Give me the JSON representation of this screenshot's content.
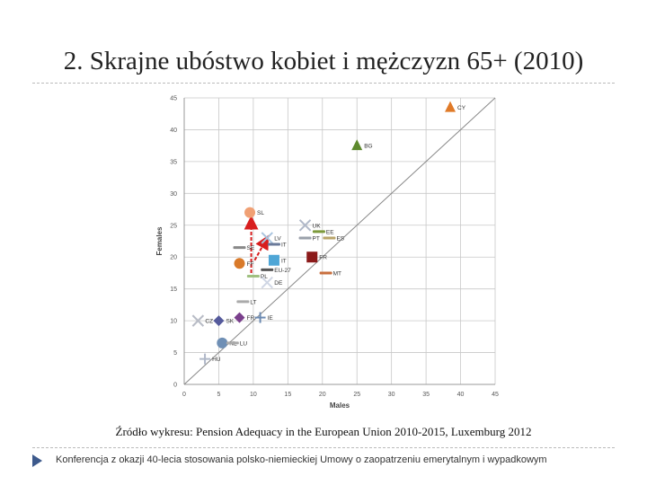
{
  "slide": {
    "title": "2. Skrajne ubóstwo kobiet i mężczyzn 65+ (2010)",
    "source": "Źródło wykresu: Pension Adequacy in the European Union 2010-2015, Luxemburg 2012",
    "footer": "Konferencja z okazji 40-lecia stosowania polsko-niemieckiej Umowy o zaopatrzeniu emerytalnym i wypadkowym"
  },
  "icons": {
    "footer_bullet": "triangle-bullet-icon"
  },
  "colors": {
    "diagonal": "#888888",
    "arrow": "#d81e1e",
    "grid": "#c8c8c8"
  },
  "chart_data": {
    "type": "scatter",
    "xlabel": "Males",
    "ylabel": "Females",
    "xlim": [
      0,
      45
    ],
    "ylim": [
      0,
      45
    ],
    "x_ticks": [
      "0",
      "5",
      "10",
      "15",
      "20",
      "25",
      "30",
      "35",
      "40",
      "45"
    ],
    "y_ticks": [
      "0",
      "5",
      "10",
      "15",
      "20",
      "25",
      "30",
      "35",
      "40",
      "45"
    ],
    "grid": true,
    "reference_line": "y = x",
    "points": [
      {
        "label": "CY",
        "x": 38.5,
        "y": 43.5,
        "shape": "triangle",
        "color": "#e07a28"
      },
      {
        "label": "BG",
        "x": 25,
        "y": 37.5,
        "shape": "triangle",
        "color": "#5e8a2e"
      },
      {
        "label": "SL",
        "x": 9.5,
        "y": 27,
        "shape": "circle",
        "color": "#f0a074"
      },
      {
        "label": "UK",
        "x": 17.5,
        "y": 25,
        "shape": "x",
        "color": "#b0b8c8"
      },
      {
        "label": "EE",
        "x": 19.5,
        "y": 24,
        "shape": "dash",
        "color": "#7d9a3c"
      },
      {
        "label": "ES",
        "x": 21,
        "y": 23,
        "shape": "dash",
        "color": "#b9a46a"
      },
      {
        "label": "PT",
        "x": 17.5,
        "y": 23,
        "shape": "dash",
        "color": "#9aa0aa"
      },
      {
        "label": "LV",
        "x": 12,
        "y": 23,
        "shape": "x",
        "color": "#a9c4de"
      },
      {
        "label": "IT",
        "x": 13,
        "y": 22,
        "shape": "dash",
        "color": "#6a7a9a"
      },
      {
        "label": "SE",
        "x": 8,
        "y": 21.5,
        "shape": "dash",
        "color": "#888888"
      },
      {
        "label": "FR",
        "x": 18.5,
        "y": 20,
        "shape": "square",
        "color": "#8b1a1a"
      },
      {
        "label": "IT",
        "x": 13,
        "y": 19.5,
        "shape": "square",
        "color": "#4fa6d6"
      },
      {
        "label": "EU-27",
        "x": 12,
        "y": 18,
        "shape": "dash",
        "color": "#555555"
      },
      {
        "label": "FF",
        "x": 8,
        "y": 19,
        "shape": "circle",
        "color": "#d97a2a"
      },
      {
        "label": "MT",
        "x": 20.5,
        "y": 17.5,
        "shape": "dash",
        "color": "#c86f3e"
      },
      {
        "label": "PL",
        "x": 10,
        "y": 17,
        "shape": "dash",
        "color": "#a0c080"
      },
      {
        "label": "DE",
        "x": 12,
        "y": 16,
        "shape": "x",
        "color": "#cfd6e4"
      },
      {
        "label": "LT",
        "x": 8.5,
        "y": 13,
        "shape": "dash",
        "color": "#aaaaaa"
      },
      {
        "label": "FR",
        "x": 8,
        "y": 10.5,
        "shape": "diamond",
        "color": "#7a3f8c"
      },
      {
        "label": "IE",
        "x": 11,
        "y": 10.5,
        "shape": "plus",
        "color": "#6c8ab2"
      },
      {
        "label": "CZ",
        "x": 2,
        "y": 10,
        "shape": "x",
        "color": "#b8bcc6"
      },
      {
        "label": "SK",
        "x": 5,
        "y": 10,
        "shape": "diamond",
        "color": "#555a9c"
      },
      {
        "label": "NL",
        "x": 5.5,
        "y": 6.5,
        "shape": "circle",
        "color": "#6f8fb5"
      },
      {
        "label": "LU",
        "x": 7,
        "y": 6.5,
        "shape": "dash",
        "color": "#aaaaaa"
      },
      {
        "label": "HU",
        "x": 3,
        "y": 4,
        "shape": "plus",
        "color": "#b0b8c8"
      }
    ],
    "annotations": [
      {
        "type": "arrow",
        "from": [
          9.7,
          17.5
        ],
        "to": [
          9.7,
          26
        ]
      },
      {
        "type": "arrow",
        "from": [
          10.2,
          19.5
        ],
        "to": [
          12,
          23
        ]
      }
    ]
  }
}
